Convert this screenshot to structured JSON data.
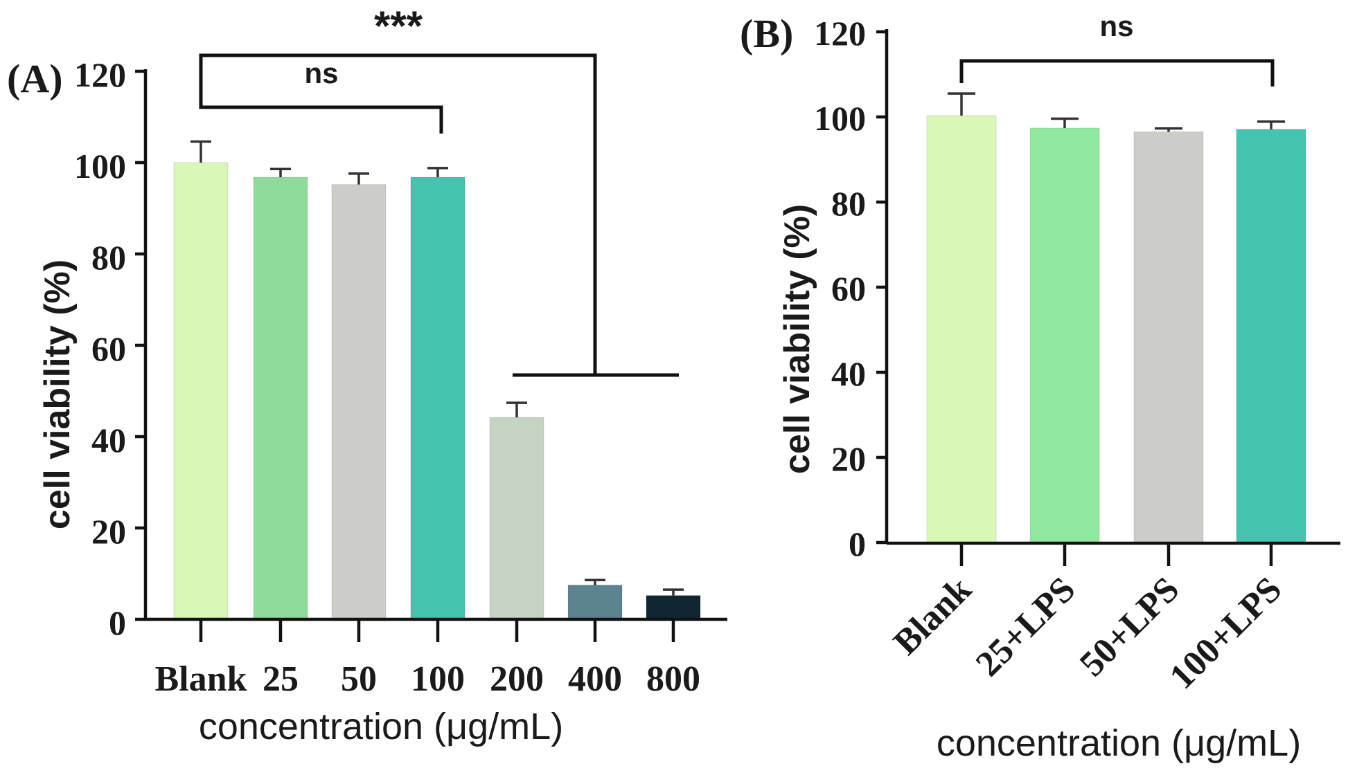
{
  "chart_data": [
    {
      "type": "bar",
      "panel_label": "(A)",
      "title": "",
      "categories": [
        "Blank",
        "25",
        "50",
        "100",
        "200",
        "400",
        "800"
      ],
      "values": [
        100,
        96.8,
        95.2,
        96.8,
        44.2,
        7.5,
        5.2
      ],
      "errors": [
        4.6,
        1.8,
        2.4,
        2.0,
        3.2,
        1.1,
        1.3
      ],
      "colors": [
        "#d9f7b5",
        "#8fdb9c",
        "#cccdc8",
        "#44c3ae",
        "#c4d3c3",
        "#5e8390",
        "#0e2732"
      ],
      "xlabel": "concentration (μg/mL)",
      "ylabel": "cell viability (%)",
      "ylim": [
        0,
        120
      ],
      "yticks": [
        "0",
        "20",
        "40",
        "60",
        "80",
        "100",
        "120"
      ],
      "grid": false,
      "annotations": [
        {
          "label": "ns",
          "from": "Blank",
          "to": "100"
        },
        {
          "label": "***",
          "from": "Blank",
          "to": "200-800"
        }
      ]
    },
    {
      "type": "bar",
      "panel_label": "(B)",
      "title": "",
      "categories": [
        "Blank",
        "25+LPS",
        "50+LPS",
        "100+LPS"
      ],
      "values": [
        100.3,
        97.4,
        96.5,
        97.1
      ],
      "errors": [
        5.2,
        2.2,
        0.8,
        1.8
      ],
      "colors": [
        "#d9f7b5",
        "#8fe9a0",
        "#cccdc8",
        "#44c3ae"
      ],
      "xlabel": "concentration (μg/mL)",
      "ylabel": "cell viability (%)",
      "ylim": [
        0,
        120
      ],
      "yticks": [
        "0",
        "20",
        "40",
        "60",
        "80",
        "100",
        "120"
      ],
      "grid": false,
      "annotations": [
        {
          "label": "ns",
          "from": "Blank",
          "to": "100+LPS"
        }
      ]
    }
  ]
}
